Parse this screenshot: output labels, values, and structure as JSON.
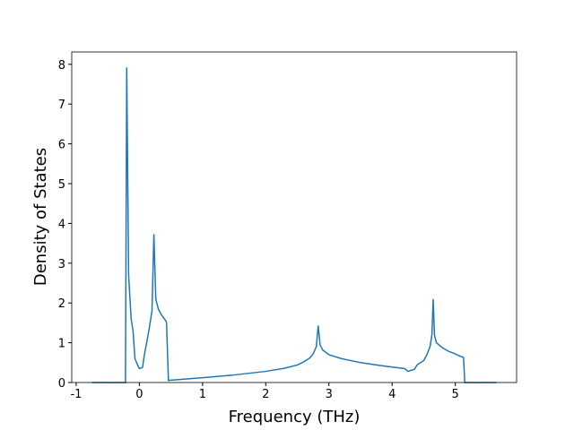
{
  "chart_data": {
    "type": "line",
    "x_label": "Frequency (THz)",
    "y_label": "Density of States",
    "xlim": [
      -1.07,
      5.97
    ],
    "ylim": [
      0,
      8.31
    ],
    "xticks": [
      -1,
      0,
      1,
      2,
      3,
      4,
      5
    ],
    "yticks": [
      0,
      1,
      2,
      3,
      4,
      5,
      6,
      7,
      8
    ],
    "grid": false,
    "series": [
      {
        "color": "#1f77b4",
        "x": [
          -0.75,
          -0.22,
          -0.2,
          -0.17,
          -0.13,
          -0.1,
          -0.07,
          -0.03,
          0,
          0.05,
          0.08,
          0.15,
          0.2,
          0.23,
          0.26,
          0.3,
          0.35,
          0.42,
          0.43,
          0.46,
          0.5,
          1,
          1.5,
          2,
          2.3,
          2.5,
          2.6,
          2.7,
          2.75,
          2.8,
          2.83,
          2.86,
          2.9,
          3,
          3.2,
          3.5,
          3.8,
          4.1,
          4.2,
          4.25,
          4.35,
          4.4,
          4.5,
          4.55,
          4.6,
          4.63,
          4.65,
          4.67,
          4.7,
          4.8,
          4.9,
          5.0,
          5.05,
          5.1,
          5.13,
          5.15,
          5.65
        ],
        "values": [
          0,
          0,
          7.92,
          2.7,
          1.6,
          1.3,
          0.6,
          0.45,
          0.35,
          0.38,
          0.7,
          1.3,
          1.8,
          3.73,
          2.1,
          1.85,
          1.7,
          1.55,
          1.5,
          0.05,
          0.06,
          0.12,
          0.19,
          0.28,
          0.36,
          0.44,
          0.52,
          0.62,
          0.72,
          0.9,
          1.43,
          0.95,
          0.82,
          0.7,
          0.6,
          0.5,
          0.43,
          0.37,
          0.35,
          0.28,
          0.33,
          0.45,
          0.55,
          0.7,
          0.9,
          1.2,
          2.1,
          1.2,
          1.0,
          0.87,
          0.78,
          0.72,
          0.68,
          0.65,
          0.63,
          0,
          0
        ]
      }
    ]
  }
}
